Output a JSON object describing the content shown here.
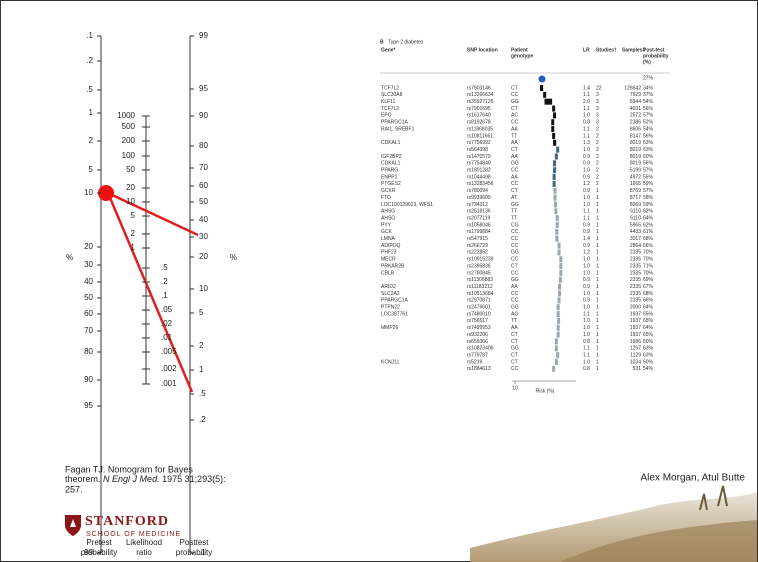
{
  "nomogram": {
    "pretest": {
      "ticks": [
        ".1",
        ".2",
        ".5",
        "1",
        "2",
        "5",
        "10",
        "20",
        "30",
        "40",
        "50",
        "60",
        "70",
        "80",
        "90",
        "95",
        "99"
      ],
      "unit": "%",
      "label": [
        "Pretest",
        "probability"
      ]
    },
    "likelihood": {
      "ticks": [
        "1000",
        "500",
        "200",
        "100",
        "50",
        "20",
        "10",
        "5",
        "2",
        "1",
        ".5",
        ".2",
        ".1",
        ".05",
        ".02",
        ".01",
        ".005",
        ".002",
        ".001"
      ],
      "label": [
        "Likelihood",
        "ratio"
      ]
    },
    "posttest": {
      "ticks": [
        "99",
        "95",
        "90",
        "80",
        "70",
        "60",
        "50",
        "40",
        "30",
        "20",
        "10",
        "5",
        "2",
        "1",
        ".5",
        ".2",
        ".1"
      ],
      "unit": "%",
      "label": [
        "Posttest",
        "probability"
      ]
    }
  },
  "table": {
    "panel": "B",
    "title": "Type 2 diabetes",
    "columns": [
      [
        "Gene*"
      ],
      [
        "SNP location"
      ],
      [
        "Patient",
        "genotype"
      ],
      [
        "LR"
      ],
      [
        "Studies†"
      ],
      [
        "Samples‡"
      ],
      [
        "Post-test",
        "probability",
        "(%)"
      ]
    ],
    "pretest": "27%",
    "rows": [
      [
        "TCF7L2",
        "rs7903146",
        "CT",
        "1.4",
        "22",
        "126642",
        "34%"
      ],
      [
        "SLC30A8",
        "rs13266634",
        "CC",
        "1.1",
        "3",
        "7629",
        "37%"
      ],
      [
        "KLF11",
        "rs35927125",
        "GG",
        "2.0",
        "3",
        "6944",
        "54%"
      ],
      [
        "TCF7L2",
        "rs7901695",
        "CT",
        "1.1",
        "3",
        "4031",
        "56%"
      ],
      [
        "EPO",
        "rs1617640",
        "AC",
        "1.0",
        "3",
        "2572",
        "57%"
      ],
      [
        "PPARGC1A",
        "rs8192678",
        "CC",
        "0.8",
        "3",
        "2386",
        "52%"
      ],
      [
        "RAI1, SREBF1",
        "rs11868035",
        "AA",
        "1.1",
        "2",
        "8606",
        "54%"
      ],
      [
        null,
        "rs10811661",
        "TT",
        "1.1",
        "2",
        "8147",
        "56%"
      ],
      [
        "CDKAL1",
        "rs7756992",
        "AA",
        "1.3",
        "2",
        "8019",
        "63%"
      ],
      [
        null,
        "rs564398",
        "CT",
        "1.0",
        "2",
        "8019",
        "63%"
      ],
      [
        "IGF2BP2",
        "rs1470579",
        "AA",
        "0.9",
        "2",
        "8019",
        "60%"
      ],
      [
        "CDKAL1",
        "rs7754840",
        "GG",
        "0.9",
        "2",
        "8019",
        "56%"
      ],
      [
        "PPARG",
        "rs1801282",
        "CC",
        "1.0",
        "2",
        "5199",
        "57%"
      ],
      [
        "ENPP1",
        "rs1044498",
        "AA",
        "0.9",
        "2",
        "4972",
        "55%"
      ],
      [
        "PTGES2",
        "rs13283456",
        "CC",
        "1.2",
        "2",
        "1665",
        "59%"
      ],
      [
        "GCKR",
        "rs780094",
        "CT",
        "0.9",
        "1",
        "8769",
        "57%"
      ],
      [
        "FTO",
        "rs9939609",
        "AT",
        "1.0",
        "1",
        "8717",
        "58%"
      ],
      [
        "LOC100129623, WFS1",
        "rs734312",
        "GG",
        "1.0",
        "1",
        "8069",
        "59%"
      ],
      [
        "AHSG",
        "rs2518136",
        "TT",
        "1.1",
        "1",
        "6110",
        "62%"
      ],
      [
        "AHSG",
        "rs2077119",
        "TT",
        "1.1",
        "1",
        "6110",
        "64%"
      ],
      [
        "PYY",
        "rs1058046",
        "CG",
        "0.9",
        "1",
        "5965",
        "62%"
      ],
      [
        "GCK",
        "rs1799884",
        "CC",
        "0.9",
        "1",
        "4433",
        "61%"
      ],
      [
        "LMNA",
        "rs547915",
        "CC",
        "1.4",
        "1",
        "3017",
        "68%"
      ],
      [
        "ADIPOQ",
        "rs266729",
        "CC",
        "0.9",
        "1",
        "2864",
        "66%"
      ],
      [
        "PHF23",
        "rs222852",
        "GG",
        "1.2",
        "1",
        "2335",
        "70%"
      ],
      [
        "MECR",
        "rs10915239",
        "CC",
        "1.0",
        "1",
        "2335",
        "70%"
      ],
      [
        "PRKAR2B",
        "rs2395836",
        "CT",
        "1.0",
        "1",
        "2335",
        "71%"
      ],
      [
        "CBLB",
        "rs2780845",
        "CC",
        "1.0",
        "1",
        "2335",
        "70%"
      ],
      [
        null,
        "rs11306883",
        "GG",
        "0.9",
        "1",
        "2335",
        "69%"
      ],
      [
        "ARID2",
        "rs11183212",
        "AA",
        "0.9",
        "1",
        "2335",
        "67%"
      ],
      [
        "SLC2A2",
        "rs10513684",
        "CC",
        "1.0",
        "1",
        "2335",
        "68%"
      ],
      [
        "PPARGC1A",
        "rs2970871",
        "CC",
        "0.9",
        "1",
        "2335",
        "66%"
      ],
      [
        "PTPN22",
        "rs2476601",
        "GG",
        "1.0",
        "1",
        "2000",
        "64%"
      ],
      [
        "LOC387761",
        "rs7480010",
        "AG",
        "1.1",
        "1",
        "1937",
        "65%"
      ],
      [
        null,
        "rs756517",
        "TT",
        "1.0",
        "1",
        "1937",
        "65%"
      ],
      [
        "MMP26",
        "rs7499953",
        "AA",
        "1.0",
        "1",
        "1937",
        "64%"
      ],
      [
        null,
        "rs932206",
        "CT",
        "1.0",
        "1",
        "1937",
        "65%"
      ],
      [
        null,
        "rs659366",
        "CT",
        "0.8",
        "1",
        "1686",
        "60%"
      ],
      [
        null,
        "rs10823406",
        "GG",
        "1.1",
        "1",
        "1257",
        "63%"
      ],
      [
        null,
        "rs779787",
        "CT",
        "1.1",
        "1",
        "1129",
        "63%"
      ],
      [
        "KCNJ11",
        "rs5219",
        "CT",
        "1.0",
        "1",
        "1034",
        "60%"
      ],
      [
        null,
        "rs1884613",
        "CC",
        "0.8",
        "1",
        "531",
        "54%"
      ]
    ],
    "axis_tick": "10",
    "axis_label": "Risk (%)"
  },
  "citation": {
    "before": "Fagan TJ. Nomogram for Bayes",
    "line2a": "theorem.",
    "journal": "N Engl J Med.",
    "line2b": "1975 31;293(5):",
    "line3": "257."
  },
  "authors": "Alex Morgan, Atul Butte",
  "logo": {
    "name": "STANFORD",
    "school": "SCHOOL OF MEDICINE"
  }
}
